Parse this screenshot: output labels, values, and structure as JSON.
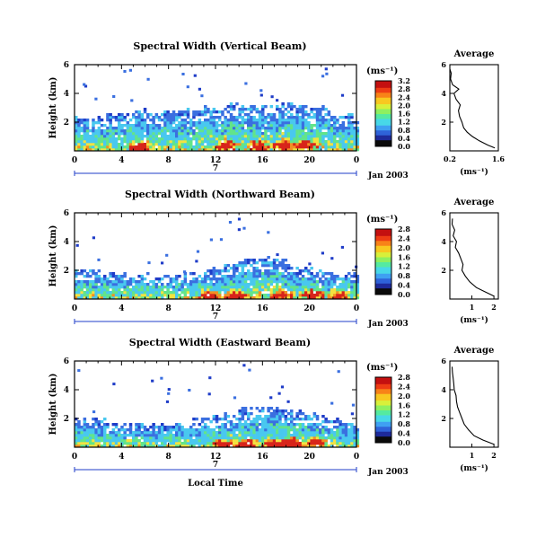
{
  "colors": {
    "colorbar": [
      "#0a0a0a",
      "#1e2a9a",
      "#2f63d9",
      "#3fa0f2",
      "#47d8e8",
      "#55eaa0",
      "#8ef060",
      "#d8f03a",
      "#f8c820",
      "#f88218",
      "#ee3c14",
      "#c41010"
    ],
    "blue_low": "#3a6fe0",
    "blue_dark": "#1f3cc8",
    "cyan": "#49c8ef",
    "green": "#62e48a",
    "yellow": "#f3e240",
    "orange": "#f39022",
    "red": "#d8241a"
  },
  "x_axis": {
    "ticks": [
      "0",
      "4",
      "8",
      "12",
      "16",
      "20",
      "0"
    ],
    "day_label": "7",
    "date_label": "Jan 2003",
    "xlabel": "Local Time"
  },
  "profile_title": "Average",
  "profile_xlabel": "(ms⁻¹)",
  "colorbar_unit": "(ms⁻¹)",
  "chart_data": [
    {
      "type": "heatmap",
      "title": "Spectral Width (Vertical Beam)",
      "ylabel": "Height (km)",
      "yticks": [
        "2",
        "4",
        "6"
      ],
      "ylim": [
        0,
        6
      ],
      "xlim": [
        0,
        24
      ],
      "colorbar_ticks": [
        "0.0",
        "0.4",
        "0.8",
        "1.2",
        "1.6",
        "2.0",
        "2.4",
        "2.8",
        "3.2"
      ],
      "clim": [
        0,
        3.2
      ],
      "boundary_top_km": [
        [
          0,
          2.4
        ],
        [
          2,
          2.3
        ],
        [
          4,
          2.6
        ],
        [
          6,
          2.7
        ],
        [
          8,
          2.6
        ],
        [
          10,
          2.9
        ],
        [
          12,
          3.0
        ],
        [
          14,
          3.1
        ],
        [
          16,
          3.0
        ],
        [
          18,
          3.2
        ],
        [
          20,
          2.9
        ],
        [
          21,
          3.1
        ],
        [
          22,
          2.5
        ],
        [
          24,
          2.4
        ]
      ],
      "hot_spots": [
        [
          5.5,
          0.4
        ],
        [
          12.8,
          0.5
        ],
        [
          15.5,
          0.4
        ],
        [
          17.8,
          0.5
        ],
        [
          19.5,
          0.5
        ]
      ],
      "profile": {
        "title": "Average",
        "xticks": [
          "0.2",
          "1.6"
        ],
        "xlim": [
          0.2,
          1.6
        ],
        "yticks": [
          "2",
          "4",
          "6"
        ],
        "heights": [
          0.2,
          0.4,
          0.7,
          1.0,
          1.3,
          1.6,
          2.0,
          2.4,
          2.8,
          3.2,
          3.6,
          4.0,
          4.3,
          4.6,
          5.0,
          5.4,
          5.7
        ],
        "values": [
          1.5,
          1.3,
          1.05,
          0.85,
          0.7,
          0.6,
          0.55,
          0.48,
          0.45,
          0.5,
          0.38,
          0.32,
          0.46,
          0.28,
          0.22,
          0.24,
          0.2
        ]
      }
    },
    {
      "type": "heatmap",
      "title": "Spectral Width (Northward Beam)",
      "ylabel": "Height (km)",
      "yticks": [
        "2",
        "4",
        "6"
      ],
      "ylim": [
        0,
        6
      ],
      "xlim": [
        0,
        24
      ],
      "colorbar_ticks": [
        "0.0",
        "0.4",
        "0.8",
        "1.2",
        "1.6",
        "2.0",
        "2.4",
        "2.8"
      ],
      "clim": [
        0,
        2.8
      ],
      "boundary_top_km": [
        [
          0,
          2.0
        ],
        [
          2,
          1.8
        ],
        [
          4,
          1.7
        ],
        [
          6,
          1.6
        ],
        [
          8,
          1.5
        ],
        [
          10,
          1.7
        ],
        [
          12,
          2.0
        ],
        [
          14,
          2.6
        ],
        [
          16,
          2.9
        ],
        [
          18,
          2.5
        ],
        [
          20,
          2.0
        ],
        [
          22,
          1.8
        ],
        [
          24,
          1.6
        ]
      ],
      "hot_spots": [
        [
          11.5,
          0.3
        ],
        [
          13.5,
          0.3
        ],
        [
          17.5,
          0.4
        ],
        [
          20.2,
          0.5
        ],
        [
          22.5,
          0.4
        ]
      ],
      "profile": {
        "title": "Average",
        "xticks": [
          "1",
          "2"
        ],
        "xlim": [
          0,
          2.2
        ],
        "yticks": [
          "2",
          "4",
          "6"
        ],
        "heights": [
          0.2,
          0.5,
          0.8,
          1.2,
          1.6,
          2.0,
          2.4,
          2.8,
          3.2,
          3.6,
          4.0,
          4.4,
          4.8,
          5.2,
          5.6
        ],
        "values": [
          2.0,
          1.6,
          1.2,
          0.9,
          0.7,
          0.55,
          0.6,
          0.5,
          0.4,
          0.25,
          0.3,
          0.15,
          0.22,
          0.1,
          0.12
        ]
      }
    },
    {
      "type": "heatmap",
      "title": "Spectral Width (Eastward Beam)",
      "ylabel": "Height (km)",
      "yticks": [
        "2",
        "4",
        "6"
      ],
      "ylim": [
        0,
        6
      ],
      "xlim": [
        0,
        24
      ],
      "colorbar_ticks": [
        "0.0",
        "0.4",
        "0.8",
        "1.2",
        "1.6",
        "2.0",
        "2.4",
        "2.8"
      ],
      "clim": [
        0,
        2.8
      ],
      "boundary_top_km": [
        [
          0,
          1.9
        ],
        [
          2,
          1.8
        ],
        [
          4,
          1.6
        ],
        [
          6,
          1.4
        ],
        [
          8,
          1.5
        ],
        [
          10,
          1.8
        ],
        [
          12,
          2.1
        ],
        [
          14,
          2.6
        ],
        [
          16,
          2.8
        ],
        [
          18,
          2.6
        ],
        [
          20,
          2.2
        ],
        [
          22,
          2.0
        ],
        [
          24,
          1.6
        ]
      ],
      "hot_spots": [
        [
          12.5,
          0.3
        ],
        [
          14.5,
          0.3
        ],
        [
          17.0,
          0.3
        ],
        [
          18.5,
          0.4
        ],
        [
          20.5,
          0.4
        ]
      ],
      "profile": {
        "title": "Average",
        "xticks": [
          "1",
          "2"
        ],
        "xlim": [
          0,
          2.2
        ],
        "yticks": [
          "2",
          "4",
          "6"
        ],
        "heights": [
          0.2,
          0.5,
          0.8,
          1.2,
          1.6,
          2.0,
          2.4,
          2.8,
          3.2,
          3.6,
          4.0,
          4.4,
          4.8,
          5.2,
          5.6
        ],
        "values": [
          2.0,
          1.5,
          1.1,
          0.85,
          0.65,
          0.55,
          0.45,
          0.35,
          0.3,
          0.28,
          0.2,
          0.18,
          0.15,
          0.12,
          0.1
        ]
      }
    }
  ]
}
